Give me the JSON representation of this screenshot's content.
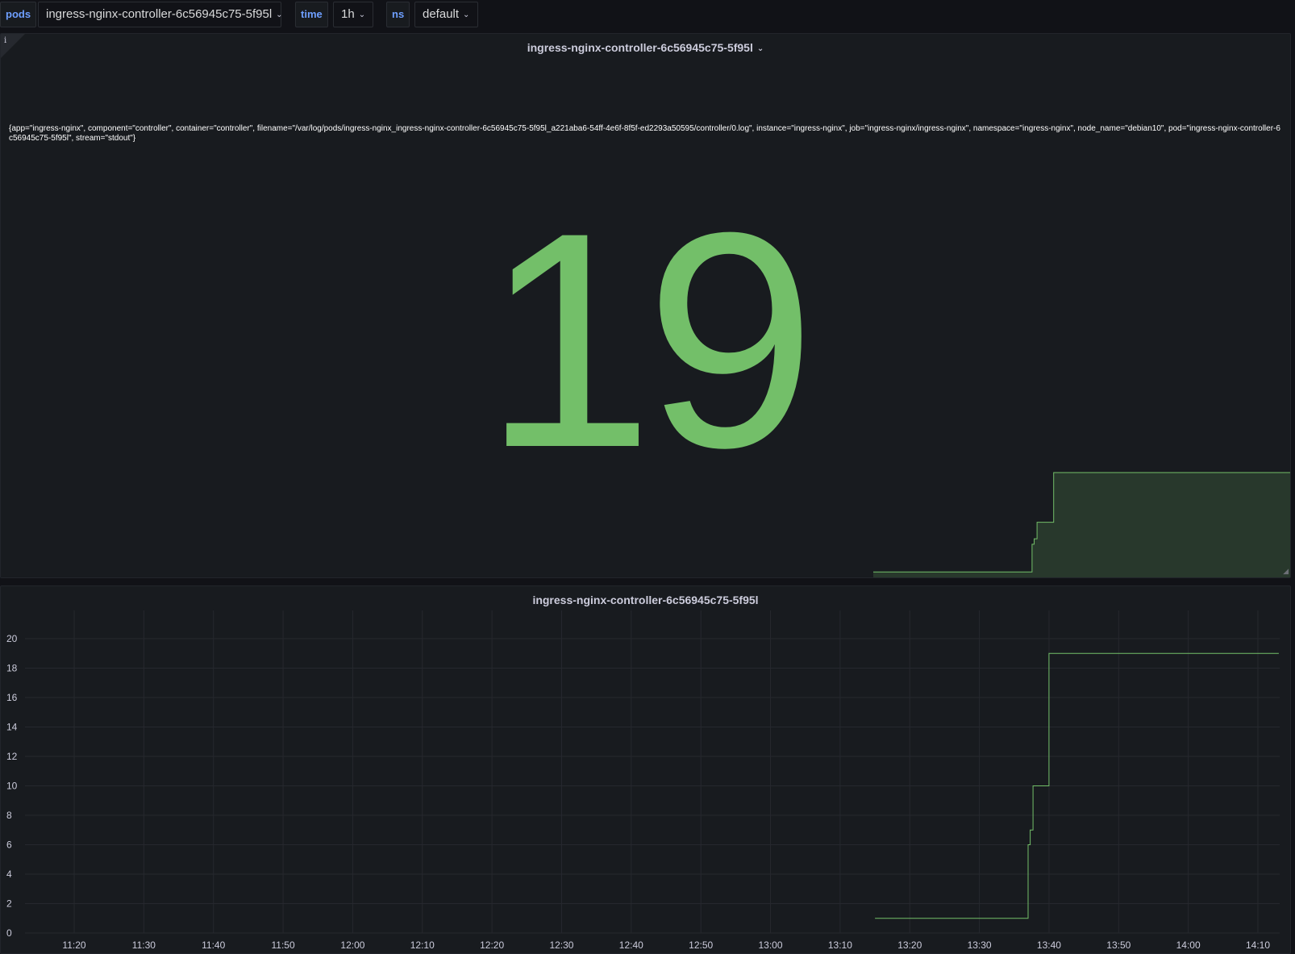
{
  "variables": [
    {
      "name": "pods",
      "value": "ingress-nginx-controller-6c56945c75-5f95l"
    },
    {
      "name": "time",
      "value": "1h"
    },
    {
      "name": "ns",
      "value": "default"
    }
  ],
  "stat_panel": {
    "title": "ingress-nginx-controller-6c56945c75-5f95l",
    "info_icon": "i",
    "labels": "{app=\"ingress-nginx\", component=\"controller\", container=\"controller\", filename=\"/var/log/pods/ingress-nginx_ingress-nginx-controller-6c56945c75-5f95l_a221aba6-54ff-4e6f-8f5f-ed2293a50595/controller/0.log\", instance=\"ingress-nginx\", job=\"ingress-nginx/ingress-nginx\", namespace=\"ingress-nginx\", node_name=\"debian10\", pod=\"ingress-nginx-controller-6c56945c75-5f95l\", stream=\"stdout\"}",
    "value": "19",
    "value_color": "#73bf69"
  },
  "graph_panel": {
    "title": "ingress-nginx-controller-6c56945c75-5f95l"
  },
  "chart_data": {
    "type": "line",
    "title": "ingress-nginx-controller-6c56945c75-5f95l",
    "xlabel": "",
    "ylabel": "",
    "ylim": [
      0,
      20
    ],
    "yticks": [
      0,
      2,
      4,
      6,
      8,
      10,
      12,
      14,
      16,
      18,
      20
    ],
    "xticks": [
      "11:20",
      "11:30",
      "11:40",
      "11:50",
      "12:00",
      "12:10",
      "12:20",
      "12:30",
      "12:40",
      "12:50",
      "13:00",
      "13:10",
      "13:20",
      "13:30",
      "13:40",
      "13:50",
      "14:00",
      "14:10"
    ],
    "xrange": [
      "11:20",
      "14:10"
    ],
    "grid": true,
    "legend": "none",
    "color": "#73bf69",
    "series": [
      {
        "x": [
          "13:15",
          "13:37",
          "13:37",
          "13:37.3",
          "13:37.3",
          "13:37.7",
          "13:37.7",
          "13:38",
          "13:38",
          "13:40",
          "13:40",
          "14:13"
        ],
        "y": [
          1,
          1,
          6,
          6,
          7,
          7,
          10,
          10,
          10,
          10,
          19,
          19
        ]
      }
    ]
  }
}
